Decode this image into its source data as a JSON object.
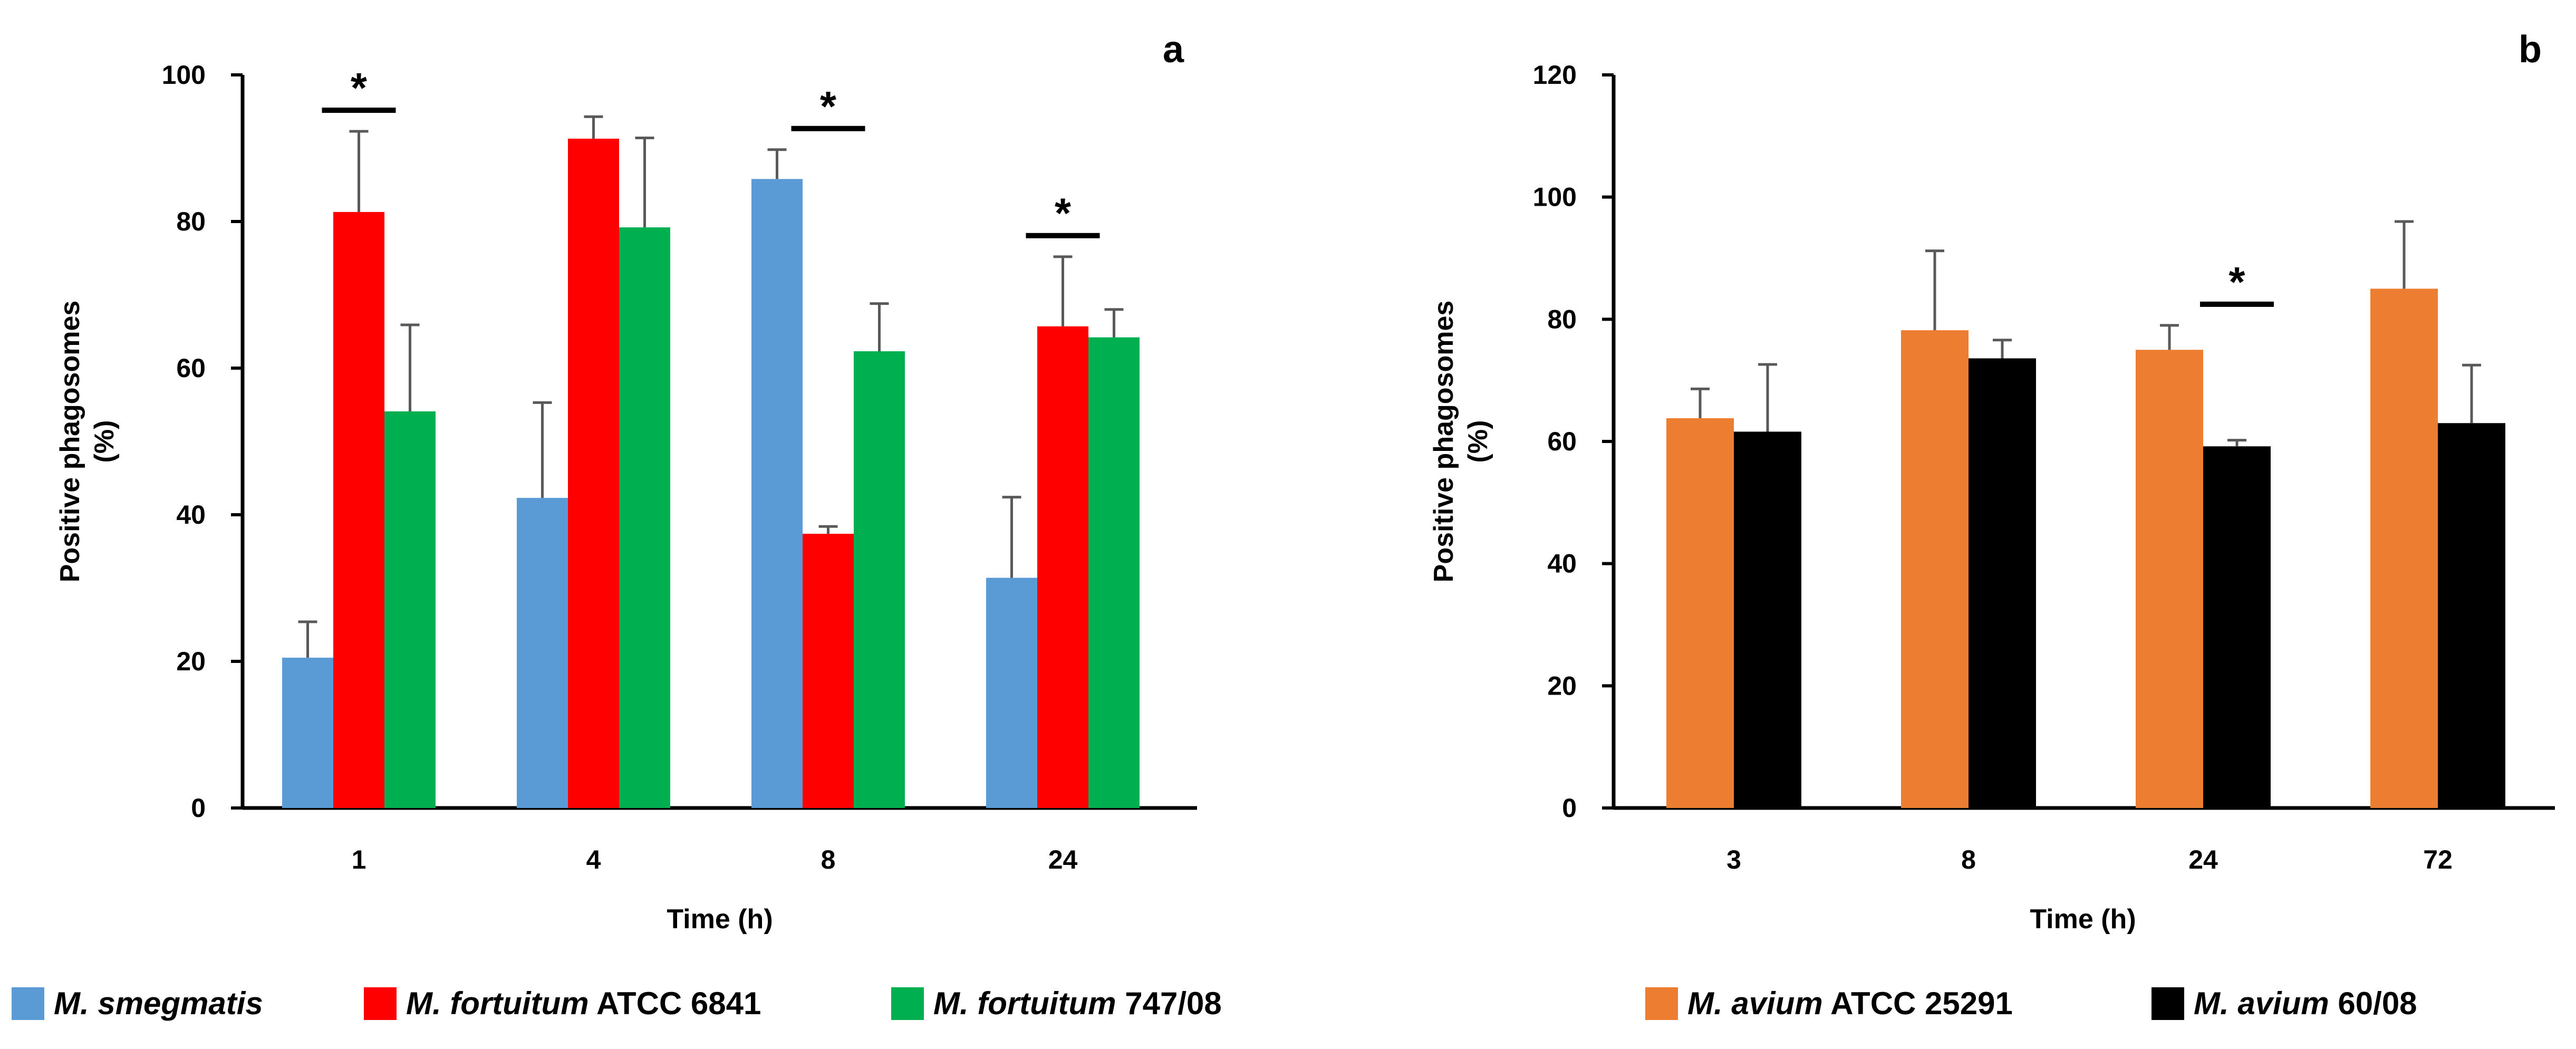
{
  "colors": {
    "smegmatis": "#5B9BD5",
    "fortuitum_atcc": "#FF0000",
    "fortuitum_747": "#00B050",
    "avium_atcc": "#ED7D31",
    "avium_6008": "#000000",
    "errorbar": "#595959"
  },
  "chart_data": [
    {
      "type": "bar",
      "panel_label": "a",
      "xlabel": "Time (h)",
      "ylabel_line1": "Positive phagosomes",
      "ylabel_line2": "(%)",
      "categories": [
        "1",
        "4",
        "8",
        "24"
      ],
      "ylim": [
        0,
        100
      ],
      "yticks": [
        "0",
        "20",
        "40",
        "60",
        "80",
        "100"
      ],
      "series": [
        {
          "name_italic": "M. smegmatis",
          "name_rest": "",
          "color_key": "smegmatis",
          "values": [
            20.5,
            42.3,
            85.8,
            31.4
          ],
          "errors": [
            4.9,
            13.0,
            4.0,
            11.0
          ]
        },
        {
          "name_italic": "M. fortuitum",
          "name_rest": " ATCC 6841",
          "color_key": "fortuitum_atcc",
          "values": [
            81.3,
            91.3,
            37.4,
            65.7
          ],
          "errors": [
            11.0,
            3.0,
            1.0,
            9.5
          ]
        },
        {
          "name_italic": "M. fortuitum",
          "name_rest": " 747/08",
          "color_key": "fortuitum_747",
          "values": [
            54.1,
            79.2,
            62.3,
            64.2
          ],
          "errors": [
            11.8,
            12.2,
            6.5,
            3.8
          ]
        }
      ],
      "significance": [
        {
          "category_index": 0,
          "label": "*"
        },
        {
          "category_index": 2,
          "label": "*"
        },
        {
          "category_index": 3,
          "label": "*"
        }
      ]
    },
    {
      "type": "bar",
      "panel_label": "b",
      "xlabel": "Time (h)",
      "ylabel_line1": "Positive phagosomes",
      "ylabel_line2": "(%)",
      "categories": [
        "3",
        "8",
        "24",
        "72"
      ],
      "ylim": [
        0,
        120
      ],
      "yticks": [
        "0",
        "20",
        "40",
        "60",
        "80",
        "100",
        "120"
      ],
      "series": [
        {
          "name_italic": "M. avium",
          "name_rest": " ATCC 25291",
          "color_key": "avium_atcc",
          "values": [
            63.8,
            78.2,
            75.0,
            85.0
          ],
          "errors": [
            4.8,
            13.0,
            4.0,
            11.0
          ]
        },
        {
          "name_italic": "M. avium",
          "name_rest": " 60/08",
          "color_key": "avium_6008",
          "values": [
            61.6,
            73.6,
            59.2,
            63.0
          ],
          "errors": [
            11.0,
            3.0,
            1.0,
            9.5
          ]
        }
      ],
      "significance": [
        {
          "category_index": 2,
          "label": "*"
        }
      ]
    }
  ]
}
